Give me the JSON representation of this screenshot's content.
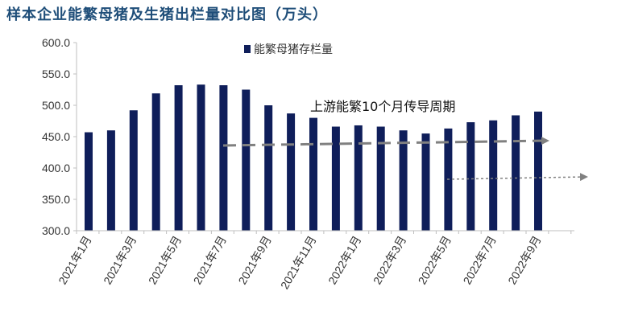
{
  "title": "样本企业能繁母猪及生猪出栏量对比图（万头）",
  "colors": {
    "bar": "#0f1e5a",
    "axis": "#bfbfbf",
    "title": "#1f4e79",
    "trend_arrow": "#808080"
  },
  "chart_data": {
    "type": "bar",
    "title": "样本企业能繁母猪及生猪出栏量对比图（万头）",
    "xlabel": "",
    "ylabel": "",
    "ylim": [
      300,
      600
    ],
    "yticks": [
      "600.0",
      "550.0",
      "500.0",
      "450.0",
      "400.0",
      "350.0",
      "300.0"
    ],
    "ytick_values": [
      600,
      550,
      500,
      450,
      400,
      350,
      300
    ],
    "grid": false,
    "legend": "top-center",
    "categories": [
      "2021年1月",
      "2021年2月",
      "2021年3月",
      "2021年4月",
      "2021年5月",
      "2021年6月",
      "2021年7月",
      "2021年8月",
      "2021年9月",
      "2021年10月",
      "2021年11月",
      "2021年12月",
      "2022年1月",
      "2022年2月",
      "2022年3月",
      "2022年4月",
      "2022年5月",
      "2022年6月",
      "2022年7月",
      "2022年8月",
      "2022年9月"
    ],
    "tick_labels": [
      "2021年1月",
      "",
      "2021年3月",
      "",
      "2021年5月",
      "",
      "2021年7月",
      "",
      "2021年9月",
      "",
      "2021年11月",
      "",
      "2022年1月",
      "",
      "2022年3月",
      "",
      "2022年5月",
      "",
      "2022年7月",
      "",
      "2022年9月"
    ],
    "series": [
      {
        "name": "能繁母猪存栏量",
        "values": [
          457,
          460,
          492,
          519,
          532,
          533,
          532,
          525,
          500,
          487,
          480,
          466,
          468,
          466,
          460,
          455,
          463,
          473,
          476,
          484,
          490
        ]
      }
    ],
    "annotations": [
      {
        "text": "上游能繁10个月传导周期"
      }
    ]
  }
}
